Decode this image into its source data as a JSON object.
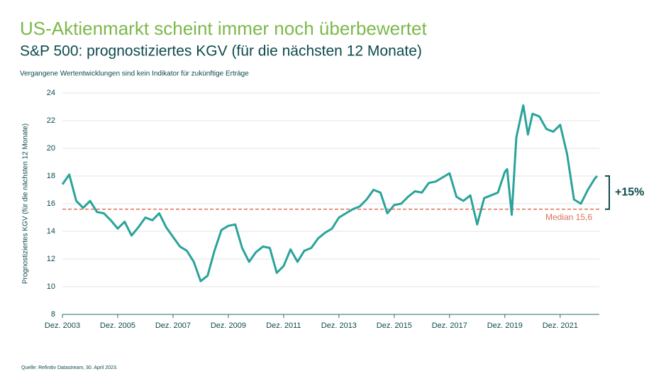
{
  "chart_data": {
    "type": "line",
    "title": "US-Aktienmarkt scheint immer noch überbewertet",
    "subtitle": "S&P 500: prognostiziertes KGV (für die nächsten 12 Monate)",
    "note": "Vergangene Wertentwicklungen sind kein Indikator für zukünftige Erträge",
    "ylabel": "Prognostiziertes KGV (für die nächsten 12 Monate)",
    "source": "Quelle: Refinitiv Datastream, 30. April 2023.",
    "ylim": [
      8,
      24
    ],
    "yticks": [
      8,
      10,
      12,
      14,
      16,
      18,
      20,
      22,
      24
    ],
    "grid": true,
    "xlim": [
      "2003-12",
      "2023-05"
    ],
    "xticks": [
      {
        "value": "2003-12",
        "label": "Dez. 2003"
      },
      {
        "value": "2005-12",
        "label": "Dez. 2005"
      },
      {
        "value": "2007-12",
        "label": "Dez. 2007"
      },
      {
        "value": "2009-12",
        "label": "Dez. 2009"
      },
      {
        "value": "2011-12",
        "label": "Dez. 2011"
      },
      {
        "value": "2013-12",
        "label": "Dez. 2013"
      },
      {
        "value": "2015-12",
        "label": "Dez. 2015"
      },
      {
        "value": "2017-12",
        "label": "Dez. 2017"
      },
      {
        "value": "2019-12",
        "label": "Dez. 2019"
      },
      {
        "value": "2021-12",
        "label": "Dez. 2021"
      }
    ],
    "x": [
      "2003-12",
      "2004-03",
      "2004-06",
      "2004-09",
      "2004-12",
      "2005-03",
      "2005-06",
      "2005-09",
      "2005-12",
      "2006-03",
      "2006-06",
      "2006-09",
      "2006-12",
      "2007-03",
      "2007-06",
      "2007-09",
      "2007-12",
      "2008-03",
      "2008-06",
      "2008-09",
      "2008-12",
      "2009-03",
      "2009-06",
      "2009-09",
      "2009-12",
      "2010-03",
      "2010-06",
      "2010-09",
      "2010-12",
      "2011-03",
      "2011-06",
      "2011-09",
      "2011-12",
      "2012-03",
      "2012-06",
      "2012-09",
      "2012-12",
      "2013-03",
      "2013-06",
      "2013-09",
      "2013-12",
      "2014-03",
      "2014-06",
      "2014-09",
      "2014-12",
      "2015-03",
      "2015-06",
      "2015-09",
      "2015-12",
      "2016-03",
      "2016-06",
      "2016-09",
      "2016-12",
      "2017-03",
      "2017-06",
      "2017-09",
      "2017-12",
      "2018-03",
      "2018-06",
      "2018-09",
      "2018-12",
      "2019-03",
      "2019-06",
      "2019-09",
      "2019-12",
      "2020-01",
      "2020-03",
      "2020-05",
      "2020-08",
      "2020-10",
      "2020-12",
      "2021-03",
      "2021-06",
      "2021-09",
      "2021-12",
      "2022-03",
      "2022-06",
      "2022-09",
      "2022-12",
      "2023-03",
      "2023-04"
    ],
    "series": [
      {
        "name": "KGV",
        "color": "#2aa39a",
        "values": [
          17.4,
          18.1,
          16.2,
          15.7,
          16.2,
          15.4,
          15.3,
          14.8,
          14.2,
          14.7,
          13.7,
          14.3,
          15.0,
          14.8,
          15.3,
          14.3,
          13.6,
          12.9,
          12.6,
          11.8,
          10.4,
          10.8,
          12.6,
          14.1,
          14.4,
          14.5,
          12.8,
          11.8,
          12.5,
          12.9,
          12.8,
          11.0,
          11.5,
          12.7,
          11.8,
          12.6,
          12.8,
          13.5,
          13.9,
          14.2,
          15.0,
          15.3,
          15.6,
          15.8,
          16.3,
          17.0,
          16.8,
          15.3,
          15.9,
          16.0,
          16.5,
          16.9,
          16.8,
          17.5,
          17.6,
          17.9,
          18.2,
          16.5,
          16.2,
          16.6,
          14.5,
          16.4,
          16.6,
          16.8,
          18.3,
          18.5,
          15.2,
          20.8,
          23.1,
          21.0,
          22.5,
          22.3,
          21.4,
          21.2,
          21.7,
          19.6,
          16.3,
          16.0,
          17.0,
          17.8,
          18.0
        ]
      }
    ],
    "median": {
      "value": 15.6,
      "label": "Median 15,6",
      "color": "#e0705a"
    },
    "change_label": "+15%"
  }
}
